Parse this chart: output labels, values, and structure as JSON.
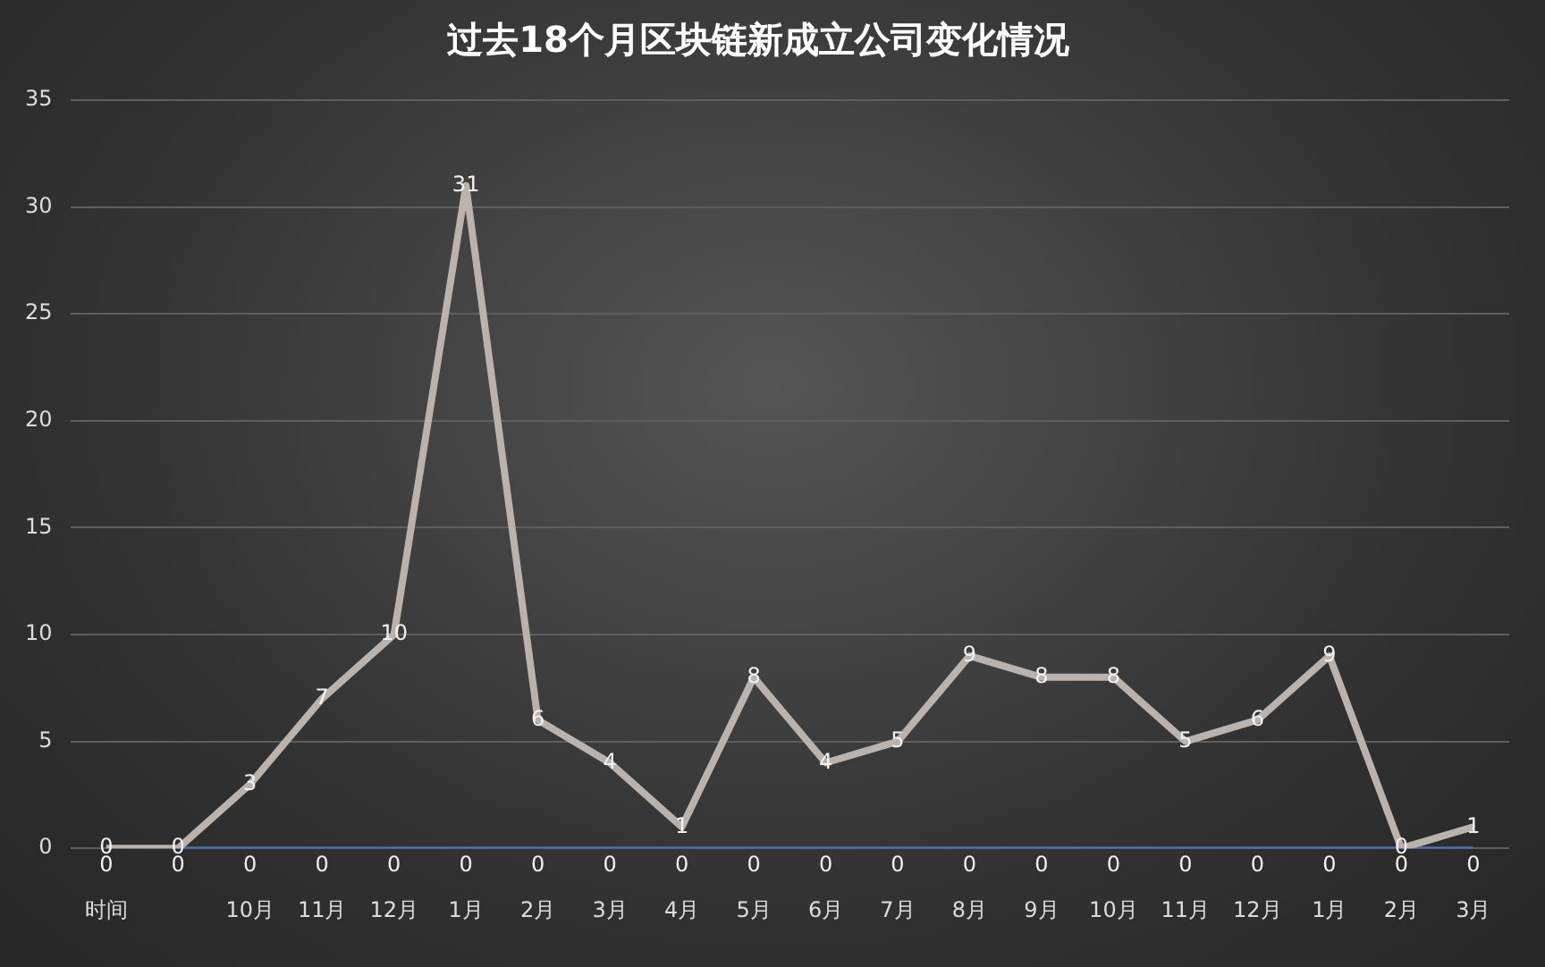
{
  "chart_data": {
    "type": "line",
    "title": "过去18个月区块链新成立公司变化情况",
    "categories": [
      "时间",
      null,
      "10月",
      "11月",
      "12月",
      "1月",
      "2月",
      "3月",
      "4月",
      "5月",
      "6月",
      "7月",
      "8月",
      "9月",
      "10月",
      "11月",
      "12月",
      "1月",
      "2月",
      "3月"
    ],
    "series": [
      {
        "color": "#4472c4",
        "values": [
          0,
          0,
          0,
          0,
          0,
          0,
          0,
          0,
          0,
          0,
          0,
          0,
          0,
          0,
          0,
          0,
          0,
          0,
          0,
          0
        ]
      },
      {
        "color": "#bab2ac",
        "values": [
          0,
          0,
          3,
          7,
          10,
          31,
          6,
          4,
          1,
          8,
          4,
          5,
          9,
          8,
          8,
          5,
          6,
          9,
          0,
          1
        ]
      }
    ],
    "ylim": [
      0,
      35
    ],
    "yticks": [
      0,
      5,
      10,
      15,
      20,
      25,
      30,
      35
    ],
    "grid": "y",
    "data_labels": true
  }
}
